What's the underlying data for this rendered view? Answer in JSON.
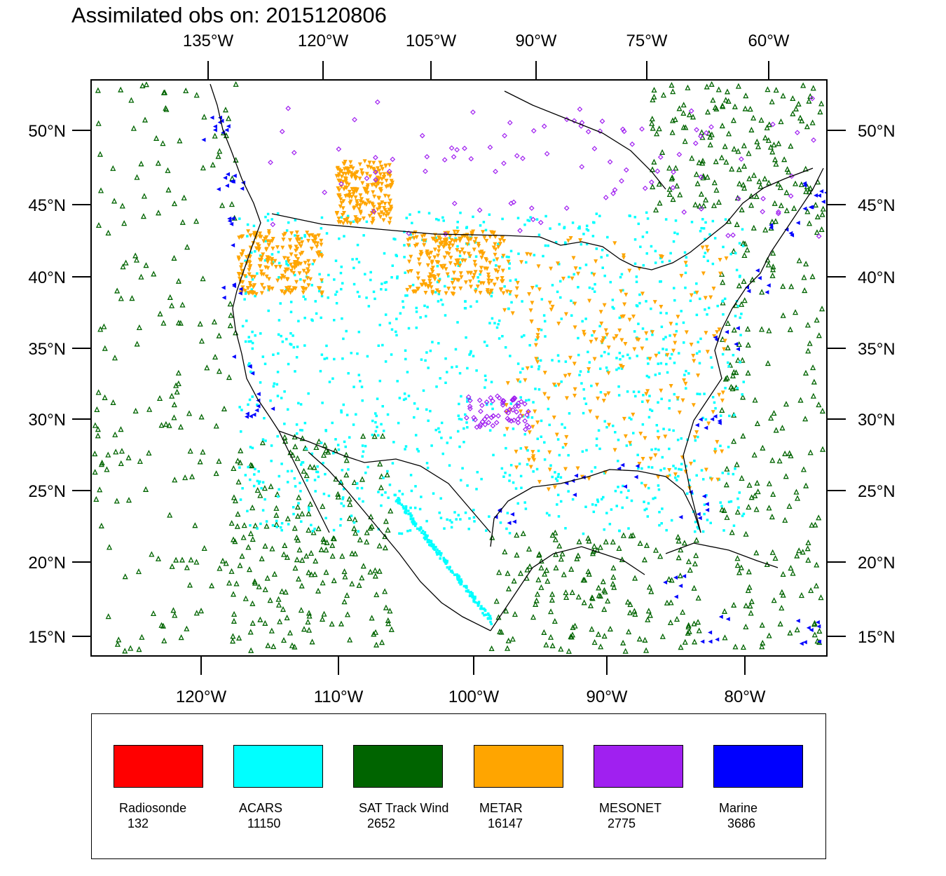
{
  "title": "Assimilated obs on: 2015120806",
  "top_axis_labels": [
    "135°W",
    "120°W",
    "105°W",
    "90°W",
    "75°W",
    "60°W"
  ],
  "bottom_axis_labels": [
    "120°W",
    "110°W",
    "100°W",
    "90°W",
    "80°W"
  ],
  "lat_labels": [
    "50°N",
    "45°N",
    "40°N",
    "35°N",
    "30°N",
    "25°N",
    "20°N",
    "15°N"
  ],
  "legend": [
    {
      "name": "Radiosonde",
      "count": "132",
      "color": "#ff0000"
    },
    {
      "name": "ACARS",
      "count": "11150",
      "color": "#00ffff"
    },
    {
      "name": "SAT Track Wind",
      "count": "2652",
      "color": "#006400"
    },
    {
      "name": "METAR",
      "count": "16147",
      "color": "#ffa500"
    },
    {
      "name": "MESONET",
      "count": "2775",
      "color": "#a020f0"
    },
    {
      "name": "Marine",
      "count": "3686",
      "color": "#0000ff"
    }
  ]
}
